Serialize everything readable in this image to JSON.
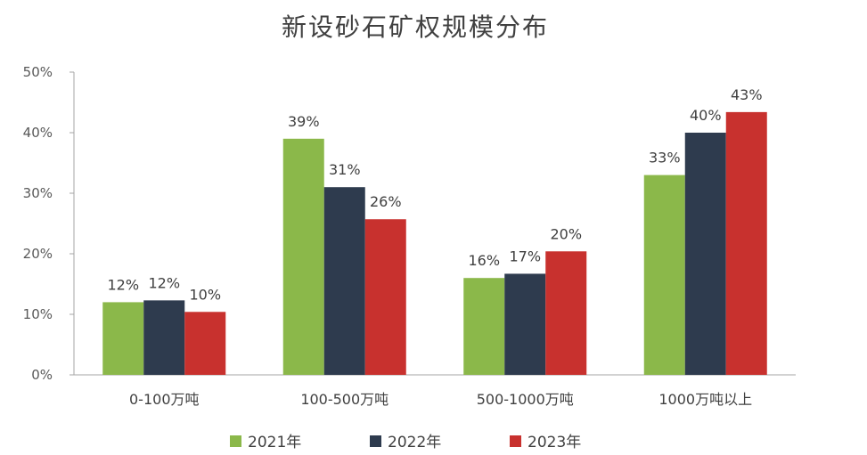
{
  "chart_data": {
    "type": "bar",
    "title": "新设砂石矿权规模分布",
    "categories": [
      "0-100万吨",
      "100-500万吨",
      "500-1000万吨",
      "1000万吨以上"
    ],
    "series": [
      {
        "name": "2021年",
        "values": [
          12,
          39,
          16,
          33
        ],
        "labels": [
          "12%",
          "39%",
          "16%",
          "33%"
        ],
        "color": "#8BB84A"
      },
      {
        "name": "2022年",
        "values": [
          12.3,
          31,
          16.7,
          40
        ],
        "labels": [
          "12%",
          "31%",
          "17%",
          "40%"
        ],
        "color": "#2E3B4E"
      },
      {
        "name": "2023年",
        "values": [
          10.4,
          25.7,
          20.4,
          43.4
        ],
        "labels": [
          "10%",
          "26%",
          "20%",
          "43%"
        ],
        "color": "#C8312E"
      }
    ],
    "ylim": [
      0,
      50
    ],
    "yticks": [
      "0%",
      "10%",
      "20%",
      "30%",
      "40%",
      "50%"
    ],
    "xlabel": "",
    "ylabel": "",
    "grid": false,
    "legend_position": "bottom"
  }
}
